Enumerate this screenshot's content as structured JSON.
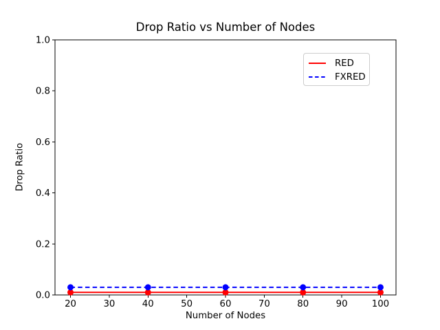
{
  "chart_data": {
    "type": "line",
    "title": "Drop Ratio vs Number of Nodes",
    "xlabel": "Number of Nodes",
    "ylabel": "Drop Ratio",
    "x": [
      20,
      40,
      60,
      80,
      100
    ],
    "series": [
      {
        "name": "RED",
        "color": "#ff0000",
        "line_style": "solid",
        "marker": "circle",
        "values": [
          0.01,
          0.01,
          0.01,
          0.01,
          0.01
        ]
      },
      {
        "name": "FXRED",
        "color": "#0000ff",
        "line_style": "dashed",
        "marker": "circle",
        "values": [
          0.03,
          0.03,
          0.03,
          0.03,
          0.03
        ]
      }
    ],
    "xlim": [
      16,
      104
    ],
    "ylim": [
      0,
      1
    ],
    "xticks": [
      20,
      30,
      40,
      50,
      60,
      70,
      80,
      90,
      100
    ],
    "xtick_labels": [
      "20",
      "30",
      "40",
      "50",
      "60",
      "70",
      "80",
      "90",
      "100"
    ],
    "yticks": [
      0.0,
      0.2,
      0.4,
      0.6,
      0.8,
      1.0
    ],
    "ytick_labels": [
      "0.0",
      "0.2",
      "0.4",
      "0.6",
      "0.8",
      "1.0"
    ],
    "grid": false,
    "legend_position": "upper right",
    "axis_color": "#000000",
    "background_color": "#ffffff"
  }
}
